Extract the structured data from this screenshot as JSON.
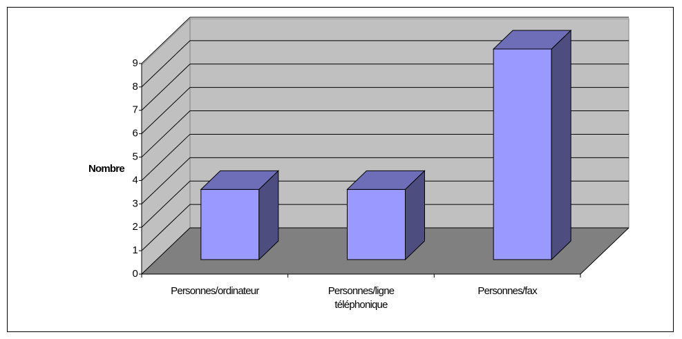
{
  "chart_data": {
    "type": "bar3d",
    "y_label": "Nombre",
    "categories": [
      "Personnes/ordinateur",
      "Personnes/ligne téléphonique",
      "Personnes/fax"
    ],
    "values": [
      3,
      3,
      9
    ],
    "color": "#9999ff",
    "ylim": [
      0,
      9
    ],
    "yticks": [
      0,
      1,
      2,
      3,
      4,
      5,
      6,
      7,
      8,
      9
    ],
    "grid": true
  }
}
